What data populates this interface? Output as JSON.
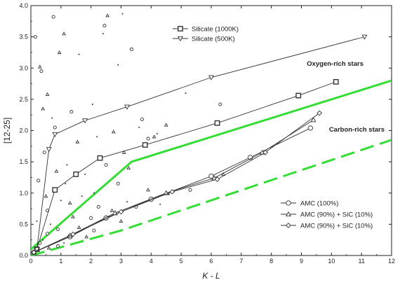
{
  "chart_data": {
    "type": "scatter",
    "title": "",
    "xlabel": "K - L",
    "ylabel": "[12-25]",
    "xlim": [
      0,
      12
    ],
    "ylim": [
      0,
      4.0
    ],
    "x_ticks": [
      "0",
      "1",
      "2",
      "3",
      "4",
      "5",
      "6",
      "7",
      "8",
      "9",
      "10",
      "11",
      "12"
    ],
    "y_ticks": [
      "0.0",
      "0.5",
      "1.0",
      "1.5",
      "2.0",
      "2.5",
      "3.0",
      "3.5",
      "4.0"
    ],
    "grid": false,
    "legend_top": [
      "Silicate (1000K)",
      "Silicate (500K)"
    ],
    "legend_bottom": [
      "AMC (100%)",
      "AMC (90%) + SiC (10%)",
      "AMC (90%) + SiC (10%)"
    ],
    "region_labels": [
      "Oxygen-rich stars",
      "Carbon-rich stars"
    ],
    "colors": {
      "boundary": "#33dd33",
      "series": "#333333"
    },
    "boundaries": [
      {
        "name": "Oxygen-rich / Carbon-rich divide",
        "style": "solid",
        "points": [
          [
            0,
            0.1
          ],
          [
            3.35,
            1.5
          ],
          [
            12,
            2.8
          ]
        ]
      },
      {
        "name": "Carbon-rich lower bound",
        "style": "dashed",
        "points": [
          [
            0,
            0.0
          ],
          [
            3.0,
            0.4
          ],
          [
            12,
            1.85
          ]
        ]
      }
    ],
    "series": [
      {
        "name": "Silicate (1000K)",
        "marker": "square",
        "points": [
          [
            0.2,
            0.1
          ],
          [
            0.8,
            1.05
          ],
          [
            1.5,
            1.3
          ],
          [
            2.3,
            1.56
          ],
          [
            3.8,
            1.77
          ],
          [
            6.2,
            2.12
          ],
          [
            8.9,
            2.56
          ],
          [
            10.15,
            2.78
          ]
        ]
      },
      {
        "name": "Silicate (500K)",
        "marker": "triangle-down",
        "points": [
          [
            0.2,
            0.1
          ],
          [
            0.6,
            1.7
          ],
          [
            0.8,
            1.94
          ],
          [
            1.8,
            2.16
          ],
          [
            3.2,
            2.38
          ],
          [
            6.0,
            2.85
          ],
          [
            11.1,
            3.5
          ]
        ]
      },
      {
        "name": "AMC (100%)",
        "marker": "circle",
        "points": [
          [
            0.1,
            0.05
          ],
          [
            1.3,
            0.3
          ],
          [
            2.5,
            0.6
          ],
          [
            4.0,
            0.9
          ],
          [
            6.0,
            1.27
          ],
          [
            7.3,
            1.57
          ],
          [
            9.3,
            2.04
          ]
        ]
      },
      {
        "name": "AMC (90%) + SiC (10%)",
        "marker": "triangle-up",
        "points": [
          [
            0.1,
            0.05
          ],
          [
            1.3,
            0.32
          ],
          [
            2.8,
            0.68
          ],
          [
            4.5,
            1.0
          ],
          [
            6.1,
            1.24
          ],
          [
            7.7,
            1.65
          ],
          [
            9.4,
            2.17
          ]
        ]
      },
      {
        "name": "AMC (90%) + SiC (10%)",
        "marker": "diamond",
        "points": [
          [
            0.1,
            0.05
          ],
          [
            1.4,
            0.34
          ],
          [
            3.0,
            0.7
          ],
          [
            4.7,
            1.02
          ],
          [
            6.2,
            1.22
          ],
          [
            7.8,
            1.65
          ],
          [
            9.6,
            2.28
          ]
        ]
      }
    ],
    "observed_stars": {
      "name": "Observed stars",
      "marker_mix": [
        "circle",
        "triangle-up",
        "dot"
      ],
      "points": [
        [
          0.75,
          3.82
        ],
        [
          2.55,
          3.84
        ],
        [
          3.05,
          3.87
        ],
        [
          0.15,
          3.5
        ],
        [
          1.1,
          3.55
        ],
        [
          2.4,
          3.55
        ],
        [
          2.45,
          3.68
        ],
        [
          0.95,
          3.25
        ],
        [
          1.6,
          3.22
        ],
        [
          3.35,
          3.3
        ],
        [
          0.3,
          3.02
        ],
        [
          2.9,
          3.05
        ],
        [
          0.35,
          2.95
        ],
        [
          0.55,
          2.58
        ],
        [
          5.15,
          2.6
        ],
        [
          6.3,
          2.42
        ],
        [
          0.4,
          2.35
        ],
        [
          2.05,
          2.42
        ],
        [
          3.7,
          2.18
        ],
        [
          4.5,
          2.09
        ],
        [
          4.2,
          1.95
        ],
        [
          3.9,
          1.87
        ],
        [
          3.1,
          1.65
        ],
        [
          1.0,
          0.88
        ],
        [
          0.55,
          0.72
        ],
        [
          1.4,
          0.62
        ],
        [
          0.65,
          0.5
        ],
        [
          0.9,
          0.42
        ],
        [
          1.85,
          0.3
        ],
        [
          0.4,
          0.25
        ],
        [
          2.0,
          0.6
        ],
        [
          2.7,
          0.72
        ],
        [
          3.2,
          0.86
        ],
        [
          3.5,
          0.78
        ],
        [
          1.6,
          0.45
        ],
        [
          2.1,
          1.0
        ],
        [
          0.3,
          0.2
        ],
        [
          0.6,
          0.12
        ],
        [
          1.1,
          0.2
        ],
        [
          0.9,
          0.15
        ],
        [
          1.3,
          0.84
        ],
        [
          1.7,
          0.95
        ],
        [
          2.9,
          1.15
        ],
        [
          3.9,
          1.05
        ],
        [
          4.6,
          0.98
        ],
        [
          5.3,
          1.05
        ],
        [
          6.4,
          1.3
        ],
        [
          1.2,
          1.45
        ],
        [
          0.45,
          1.65
        ],
        [
          1.55,
          1.82
        ],
        [
          2.2,
          1.9
        ],
        [
          0.8,
          2.05
        ],
        [
          2.75,
          1.98
        ],
        [
          3.6,
          2.05
        ],
        [
          0.25,
          1.2
        ],
        [
          0.85,
          1.35
        ],
        [
          1.8,
          1.3
        ],
        [
          2.5,
          1.45
        ],
        [
          3.25,
          1.4
        ],
        [
          4.3,
          0.82
        ],
        [
          2.25,
          0.78
        ],
        [
          0.5,
          0.95
        ],
        [
          1.15,
          1.15
        ],
        [
          2.1,
          0.4
        ],
        [
          3.0,
          0.55
        ],
        [
          0.2,
          0.55
        ],
        [
          0.55,
          0.35
        ],
        [
          4.1,
          1.9
        ],
        [
          0.7,
          2.2
        ],
        [
          1.35,
          2.3
        ]
      ]
    }
  }
}
